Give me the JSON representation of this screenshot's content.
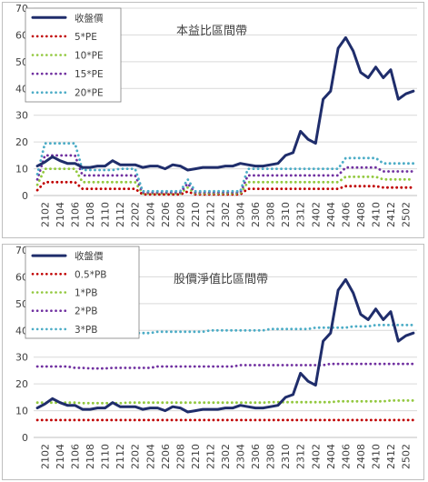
{
  "chart_data": [
    {
      "type": "line",
      "title": "本益比區間帶",
      "ylim": [
        0,
        70
      ],
      "yticks": [
        0,
        10,
        20,
        30,
        40,
        50,
        60,
        70
      ],
      "grid": "horizontal",
      "legend": "top-left",
      "x": [
        "2101",
        "2102",
        "2103",
        "2104",
        "2105",
        "2106",
        "2107",
        "2108",
        "2109",
        "2110",
        "2111",
        "2112",
        "2201",
        "2202",
        "2203",
        "2204",
        "2205",
        "2206",
        "2207",
        "2208",
        "2209",
        "2210",
        "2211",
        "2212",
        "2301",
        "2302",
        "2303",
        "2304",
        "2305",
        "2306",
        "2307",
        "2308",
        "2309",
        "2310",
        "2311",
        "2312",
        "2401",
        "2402",
        "2403",
        "2404",
        "2405",
        "2406",
        "2407",
        "2408",
        "2409",
        "2410",
        "2411",
        "2412",
        "2501",
        "2502",
        "2503"
      ],
      "xticklabels": [
        "2102",
        "2104",
        "2106",
        "2108",
        "2110",
        "2112",
        "2202",
        "2204",
        "2206",
        "2208",
        "2210",
        "2212",
        "2302",
        "2304",
        "2306",
        "2308",
        "2310",
        "2312",
        "2402",
        "2404",
        "2406",
        "2408",
        "2410",
        "2412",
        "2502"
      ],
      "series": [
        {
          "name": "收盤價",
          "color": "#1f2d6b",
          "dash": "solid",
          "values": [
            11,
            12.5,
            14.5,
            13,
            12,
            12,
            10.5,
            10.5,
            11,
            11,
            13,
            11.5,
            11.5,
            11.5,
            10.5,
            11,
            11,
            10,
            11.5,
            11,
            9.5,
            10,
            10.5,
            10.5,
            10.5,
            11,
            11,
            12,
            11.5,
            11,
            11,
            11.5,
            12,
            15,
            16,
            24,
            21,
            19.5,
            36,
            39,
            55,
            59,
            54,
            46,
            44,
            48,
            44,
            47,
            36,
            38,
            39
          ]
        },
        {
          "name": "5*PE",
          "color": "#c00000",
          "dash": "dotted",
          "values": [
            2,
            5,
            5,
            5,
            5,
            5,
            2.5,
            2.5,
            2.5,
            2.5,
            2.5,
            2.5,
            2.5,
            2.5,
            0.4,
            0.4,
            0.4,
            0.4,
            0.4,
            0.4,
            1.5,
            0.4,
            0.4,
            0.4,
            0.4,
            0.4,
            0.4,
            0.4,
            2.5,
            2.5,
            2.5,
            2.5,
            2.5,
            2.5,
            2.5,
            2.5,
            2.5,
            2.5,
            2.5,
            2.5,
            2.5,
            3.5,
            3.5,
            3.5,
            3.5,
            3.5,
            3,
            3,
            3,
            3,
            3
          ]
        },
        {
          "name": "10*PE",
          "color": "#92c83e",
          "dash": "dotted",
          "values": [
            4,
            10,
            10,
            10,
            10,
            10,
            5,
            5,
            5,
            5,
            5,
            5,
            5,
            5,
            0.8,
            0.8,
            0.8,
            0.8,
            0.8,
            0.8,
            3,
            0.8,
            0.8,
            0.8,
            0.8,
            0.8,
            0.8,
            0.8,
            5,
            5,
            5,
            5,
            5,
            5,
            5,
            5,
            5,
            5,
            5,
            5,
            5,
            7,
            7,
            7,
            7,
            7,
            6,
            6,
            6,
            6,
            6
          ]
        },
        {
          "name": "15*PE",
          "color": "#7030a0",
          "dash": "dotted",
          "values": [
            6,
            15,
            15,
            15,
            15,
            15,
            7.5,
            7.5,
            7.5,
            7.5,
            7.5,
            7.5,
            7.5,
            7.5,
            1.2,
            1.2,
            1.2,
            1.2,
            1.2,
            1.2,
            4.5,
            1.2,
            1.2,
            1.2,
            1.2,
            1.2,
            1.2,
            1.2,
            7.5,
            7.5,
            7.5,
            7.5,
            7.5,
            7.5,
            7.5,
            7.5,
            7.5,
            7.5,
            7.5,
            7.5,
            7.5,
            10.5,
            10.5,
            10.5,
            10.5,
            10.5,
            9,
            9,
            9,
            9,
            9
          ]
        },
        {
          "name": "20*PE",
          "color": "#4bacc6",
          "dash": "dotted",
          "values": [
            8,
            19.5,
            19.5,
            19.5,
            19.5,
            19.5,
            9.5,
            9.5,
            9.5,
            9.5,
            9.5,
            10,
            10,
            10,
            1.6,
            1.6,
            1.6,
            1.6,
            1.6,
            1.6,
            6,
            1.6,
            1.6,
            1.6,
            1.6,
            1.6,
            1.6,
            1.6,
            10,
            10,
            10,
            10,
            10,
            10,
            10,
            10,
            10,
            10,
            10,
            10,
            10,
            14,
            14,
            14,
            14,
            14,
            12,
            12,
            12,
            12,
            12
          ]
        }
      ]
    },
    {
      "type": "line",
      "title": "股價淨值比區間帶",
      "ylim": [
        0,
        70
      ],
      "yticks": [
        0,
        10,
        20,
        30,
        40,
        50,
        60,
        70
      ],
      "grid": "horizontal",
      "legend": "top-left",
      "x": [
        "2101",
        "2102",
        "2103",
        "2104",
        "2105",
        "2106",
        "2107",
        "2108",
        "2109",
        "2110",
        "2111",
        "2112",
        "2201",
        "2202",
        "2203",
        "2204",
        "2205",
        "2206",
        "2207",
        "2208",
        "2209",
        "2210",
        "2211",
        "2212",
        "2301",
        "2302",
        "2303",
        "2304",
        "2305",
        "2306",
        "2307",
        "2308",
        "2309",
        "2310",
        "2311",
        "2312",
        "2401",
        "2402",
        "2403",
        "2404",
        "2405",
        "2406",
        "2407",
        "2408",
        "2409",
        "2410",
        "2411",
        "2412",
        "2501",
        "2502",
        "2503"
      ],
      "xticklabels": [
        "2102",
        "2104",
        "2106",
        "2108",
        "2110",
        "2112",
        "2202",
        "2204",
        "2206",
        "2208",
        "2210",
        "2212",
        "2302",
        "2304",
        "2306",
        "2308",
        "2310",
        "2312",
        "2402",
        "2404",
        "2406",
        "2408",
        "2410",
        "2412",
        "2502"
      ],
      "series": [
        {
          "name": "收盤價",
          "color": "#1f2d6b",
          "dash": "solid",
          "values": [
            11,
            12.5,
            14.5,
            13,
            12,
            12,
            10.5,
            10.5,
            11,
            11,
            13,
            11.5,
            11.5,
            11.5,
            10.5,
            11,
            11,
            10,
            11.5,
            11,
            9.5,
            10,
            10.5,
            10.5,
            10.5,
            11,
            11,
            12,
            11.5,
            11,
            11,
            11.5,
            12,
            15,
            16,
            24,
            21,
            19.5,
            36,
            39,
            55,
            59,
            54,
            46,
            44,
            48,
            44,
            47,
            36,
            38,
            39
          ]
        },
        {
          "name": "0.5*PB",
          "color": "#c00000",
          "dash": "dotted",
          "values": [
            6.5,
            6.5,
            6.5,
            6.5,
            6.5,
            6.5,
            6.5,
            6.5,
            6.5,
            6.5,
            6.5,
            6.5,
            6.5,
            6.5,
            6.5,
            6.5,
            6.5,
            6.5,
            6.5,
            6.5,
            6.5,
            6.5,
            6.5,
            6.5,
            6.5,
            6.5,
            6.5,
            6.5,
            6.5,
            6.5,
            6.5,
            6.5,
            6.5,
            6.5,
            6.5,
            6.5,
            6.5,
            6.5,
            6.5,
            6.5,
            6.5,
            6.5,
            6.5,
            6.5,
            6.5,
            6.5,
            6.5,
            6.5,
            6.5,
            6.5,
            6.5
          ]
        },
        {
          "name": "1*PB",
          "color": "#92c83e",
          "dash": "dotted",
          "values": [
            13,
            13,
            13,
            13,
            13,
            13,
            12.8,
            12.8,
            12.8,
            12.8,
            12.8,
            12.8,
            13,
            13,
            13,
            13,
            13,
            13,
            13,
            13,
            13,
            13,
            13,
            13,
            13,
            13,
            13,
            13,
            13,
            13,
            13,
            13.2,
            13.2,
            13.2,
            13.2,
            13.2,
            13.2,
            13.2,
            13.2,
            13.2,
            13.5,
            13.5,
            13.5,
            13.5,
            13.5,
            13.5,
            13.5,
            13.8,
            13.8,
            13.8,
            13.8
          ]
        },
        {
          "name": "2*PB",
          "color": "#7030a0",
          "dash": "dotted",
          "values": [
            26.5,
            26.5,
            26.5,
            26.5,
            26.5,
            26,
            26,
            25.8,
            25.8,
            25.8,
            26,
            26,
            26,
            26,
            26,
            26,
            26.5,
            26.5,
            26.5,
            26.5,
            26.5,
            26.5,
            26.5,
            26.5,
            26.5,
            26.5,
            26.5,
            27,
            27,
            27,
            27,
            27,
            27,
            27,
            27,
            27,
            27,
            27,
            27,
            27.5,
            27.5,
            27.5,
            27.5,
            27.5,
            27.5,
            27.5,
            27.5,
            27.5,
            27.5,
            27.5,
            27.5
          ]
        },
        {
          "name": "3*PB",
          "color": "#4bacc6",
          "dash": "dotted",
          "values": [
            40,
            40,
            40,
            39.5,
            39,
            39,
            38.5,
            38.5,
            38.5,
            38.5,
            39,
            39,
            39,
            39,
            39,
            39,
            39.5,
            39.5,
            39.5,
            39.5,
            39.5,
            39.5,
            39.5,
            40,
            40,
            40,
            40,
            40,
            40,
            40,
            40,
            40.5,
            40.5,
            40.5,
            40.5,
            40.5,
            40.5,
            41,
            41,
            41,
            41,
            41,
            41.5,
            41.5,
            41.5,
            42,
            42,
            42,
            42,
            42,
            42
          ]
        }
      ]
    }
  ]
}
